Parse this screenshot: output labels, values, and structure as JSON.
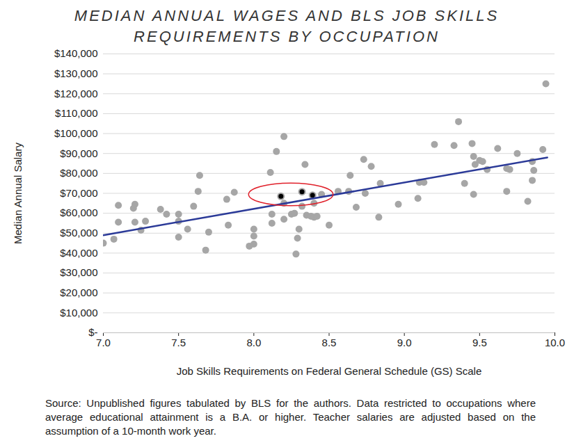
{
  "chart_data": {
    "type": "scatter",
    "title": "MEDIAN ANNUAL WAGES AND BLS JOB SKILLS REQUIREMENTS BY OCCUPATION",
    "x_label": "Job Skills Requirements on Federal General Schedule (GS) Scale",
    "y_label": "Median Annual Salary",
    "caption": "Source: Unpublished figures tabulated by BLS for the authors. Data restricted to occupations where average educational attainment is a B.A. or higher. Teacher salaries are adjusted based on the assumption of a 10-month work year.",
    "grid": true,
    "xlim": [
      7.0,
      10.0
    ],
    "xticks": [
      {
        "value": 7.0,
        "label": "7.0"
      },
      {
        "value": 7.5,
        "label": "7.5"
      },
      {
        "value": 8.0,
        "label": "8.0"
      },
      {
        "value": 8.5,
        "label": "8.5"
      },
      {
        "value": 9.0,
        "label": "9.0"
      },
      {
        "value": 9.5,
        "label": "9.5"
      },
      {
        "value": 10.0,
        "label": "10.0"
      }
    ],
    "ylim": [
      0,
      140000
    ],
    "yticks": [
      {
        "value": 0,
        "label": "$-"
      },
      {
        "value": 10000,
        "label": "$10,000"
      },
      {
        "value": 20000,
        "label": "$20,000"
      },
      {
        "value": 30000,
        "label": "$30,000"
      },
      {
        "value": 40000,
        "label": "$40,000"
      },
      {
        "value": 50000,
        "label": "$50,000"
      },
      {
        "value": 60000,
        "label": "$60,000"
      },
      {
        "value": 70000,
        "label": "$70,000"
      },
      {
        "value": 80000,
        "label": "$80,000"
      },
      {
        "value": 90000,
        "label": "$90,000"
      },
      {
        "value": 100000,
        "label": "$100,000"
      },
      {
        "value": 110000,
        "label": "$110,000"
      },
      {
        "value": 120000,
        "label": "$120,000"
      },
      {
        "value": 130000,
        "label": "$130,000"
      },
      {
        "value": 140000,
        "label": "$140,000"
      }
    ],
    "series": [
      {
        "type": "scatter",
        "marker": "circle",
        "color": "#a6a6a6",
        "x": [
          7.0,
          7.07,
          7.1,
          7.1,
          7.2,
          7.21,
          7.21,
          7.25,
          7.28,
          7.38,
          7.42,
          7.5,
          7.5,
          7.5,
          7.56,
          7.6,
          7.63,
          7.64,
          7.68,
          7.7,
          7.82,
          7.83,
          7.87,
          7.97,
          8.0,
          8.0,
          8.0,
          8.11,
          8.12,
          8.12,
          8.15,
          8.2,
          8.2,
          8.2,
          8.25,
          8.27,
          8.28,
          8.29,
          8.3,
          8.32,
          8.34,
          8.35,
          8.38,
          8.4,
          8.4,
          8.42,
          8.45,
          8.5,
          8.56,
          8.63,
          8.64,
          8.68,
          8.73,
          8.74,
          8.78,
          8.83,
          8.84,
          8.96,
          9.09,
          9.1,
          9.13,
          9.2,
          9.33,
          9.36,
          9.4,
          9.45,
          9.46,
          9.46,
          9.47,
          9.5,
          9.52,
          9.55,
          9.62,
          9.68,
          9.68,
          9.7,
          9.75,
          9.82,
          9.85,
          9.85,
          9.86,
          9.92,
          9.94
        ],
        "values": [
          45000,
          47000,
          55500,
          64000,
          62500,
          64500,
          55500,
          51500,
          56000,
          62000,
          59500,
          59500,
          56000,
          48000,
          52000,
          63500,
          71000,
          79000,
          41500,
          50500,
          67000,
          54000,
          70500,
          43500,
          52000,
          48500,
          44500,
          80500,
          59500,
          55000,
          91000,
          98500,
          57000,
          65000,
          59500,
          60000,
          39500,
          47500,
          52000,
          63500,
          84500,
          59000,
          58500,
          65000,
          58000,
          58500,
          69500,
          54000,
          71000,
          71000,
          79000,
          63000,
          87000,
          70000,
          83500,
          58000,
          75000,
          64500,
          67500,
          75500,
          75500,
          94500,
          94000,
          106000,
          75000,
          95000,
          88500,
          69500,
          84500,
          86500,
          86000,
          82000,
          92500,
          82500,
          71000,
          82000,
          90000,
          66000,
          86000,
          76500,
          81500,
          92000,
          125000
        ]
      },
      {
        "type": "scatter",
        "marker": "circle",
        "color": "#000000",
        "x": [
          8.18,
          8.32,
          8.39
        ],
        "values": [
          68500,
          70800,
          69000
        ]
      },
      {
        "type": "line",
        "line_style": "solid",
        "color": "#2b3a98",
        "x": [
          7.0,
          9.95
        ],
        "values": [
          49000,
          88000
        ]
      }
    ]
  }
}
